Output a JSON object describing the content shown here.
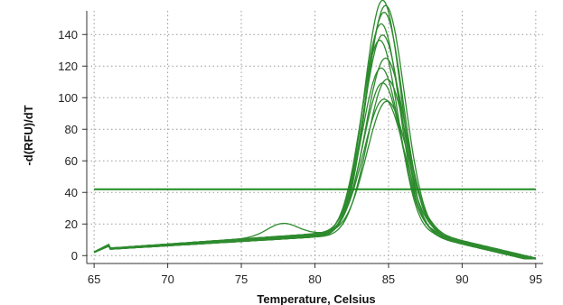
{
  "chart_data": {
    "type": "line",
    "title": "",
    "xlabel": "Temperature, Celsius",
    "ylabel": "-d(RFU)/dT",
    "xlim": [
      64.5,
      95.5
    ],
    "ylim": [
      -5,
      155
    ],
    "x_ticks": [
      65,
      70,
      75,
      80,
      85,
      90,
      95
    ],
    "y_ticks": [
      0,
      20,
      40,
      60,
      80,
      100,
      120,
      140
    ],
    "grid": true,
    "grid_style": "dotted",
    "legend": "none",
    "series_color": "#2e8b2e",
    "threshold": {
      "y": 42,
      "color": "#1f8a1f"
    },
    "series": [
      {
        "peak_x": 84.6,
        "peak_y": 150,
        "sigma": 1.25,
        "shoulder": 0
      },
      {
        "peak_x": 84.8,
        "peak_y": 146,
        "sigma": 1.3,
        "shoulder": 0
      },
      {
        "peak_x": 84.7,
        "peak_y": 141,
        "sigma": 1.28,
        "shoulder": 0
      },
      {
        "peak_x": 84.5,
        "peak_y": 133,
        "sigma": 1.25,
        "shoulder": 0
      },
      {
        "peak_x": 84.6,
        "peak_y": 128,
        "sigma": 1.3,
        "shoulder": 0
      },
      {
        "peak_x": 84.4,
        "peak_y": 124,
        "sigma": 1.27,
        "shoulder": 0
      },
      {
        "peak_x": 84.8,
        "peak_y": 112,
        "sigma": 1.35,
        "shoulder": 0
      },
      {
        "peak_x": 84.5,
        "peak_y": 105,
        "sigma": 1.3,
        "shoulder": 0
      },
      {
        "peak_x": 84.9,
        "peak_y": 100,
        "sigma": 1.35,
        "shoulder": 0
      },
      {
        "peak_x": 84.6,
        "peak_y": 97,
        "sigma": 1.32,
        "shoulder": 0
      },
      {
        "peak_x": 84.7,
        "peak_y": 86,
        "sigma": 1.4,
        "shoulder": 0
      },
      {
        "peak_x": 84.9,
        "peak_y": 84,
        "sigma": 1.38,
        "shoulder": 8
      }
    ]
  }
}
